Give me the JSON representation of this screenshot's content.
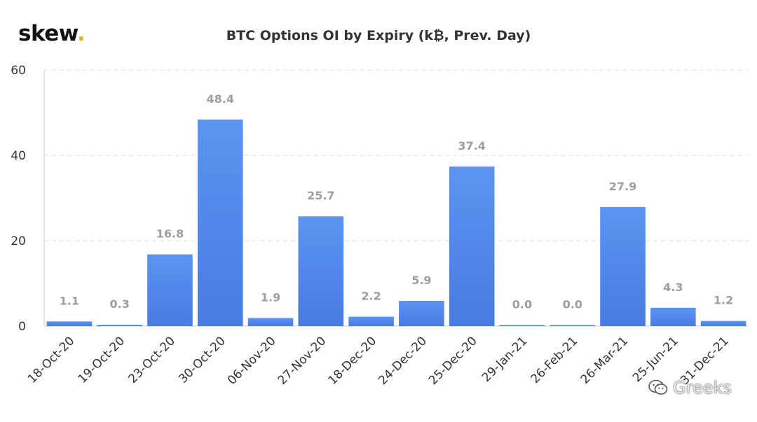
{
  "logo": {
    "text": "skew",
    "dot": "."
  },
  "watermark": {
    "text": "Greeks",
    "icon": "wechat-icon"
  },
  "colors": {
    "bar_top": "#5b94f2",
    "bar_bottom": "#4a7be0",
    "label": "#9e9e9e",
    "axis_text": "#333333",
    "grid": "#dddddd",
    "logo_dot": "#e8b030"
  },
  "chart_data": {
    "type": "bar",
    "title": "BTC Options OI by Expiry (k₿, Prev. Day)",
    "xlabel": "",
    "ylabel": "",
    "ylim": [
      0,
      60
    ],
    "yticks": [
      0,
      20,
      40,
      60
    ],
    "grid": true,
    "categories": [
      "18-Oct-20",
      "19-Oct-20",
      "23-Oct-20",
      "30-Oct-20",
      "06-Nov-20",
      "27-Nov-20",
      "18-Dec-20",
      "24-Dec-20",
      "25-Dec-20",
      "29-Jan-21",
      "26-Feb-21",
      "26-Mar-21",
      "25-Jun-21",
      "31-Dec-21"
    ],
    "values": [
      1.1,
      0.3,
      16.8,
      48.4,
      1.9,
      25.7,
      2.2,
      5.9,
      37.4,
      0.0,
      0.0,
      27.9,
      4.3,
      1.2
    ],
    "labels": [
      "1.1",
      "0.3",
      "16.8",
      "48.4",
      "1.9",
      "25.7",
      "2.2",
      "5.9",
      "37.4",
      "0.0",
      "0.0",
      "27.9",
      "4.3",
      "1.2"
    ]
  }
}
